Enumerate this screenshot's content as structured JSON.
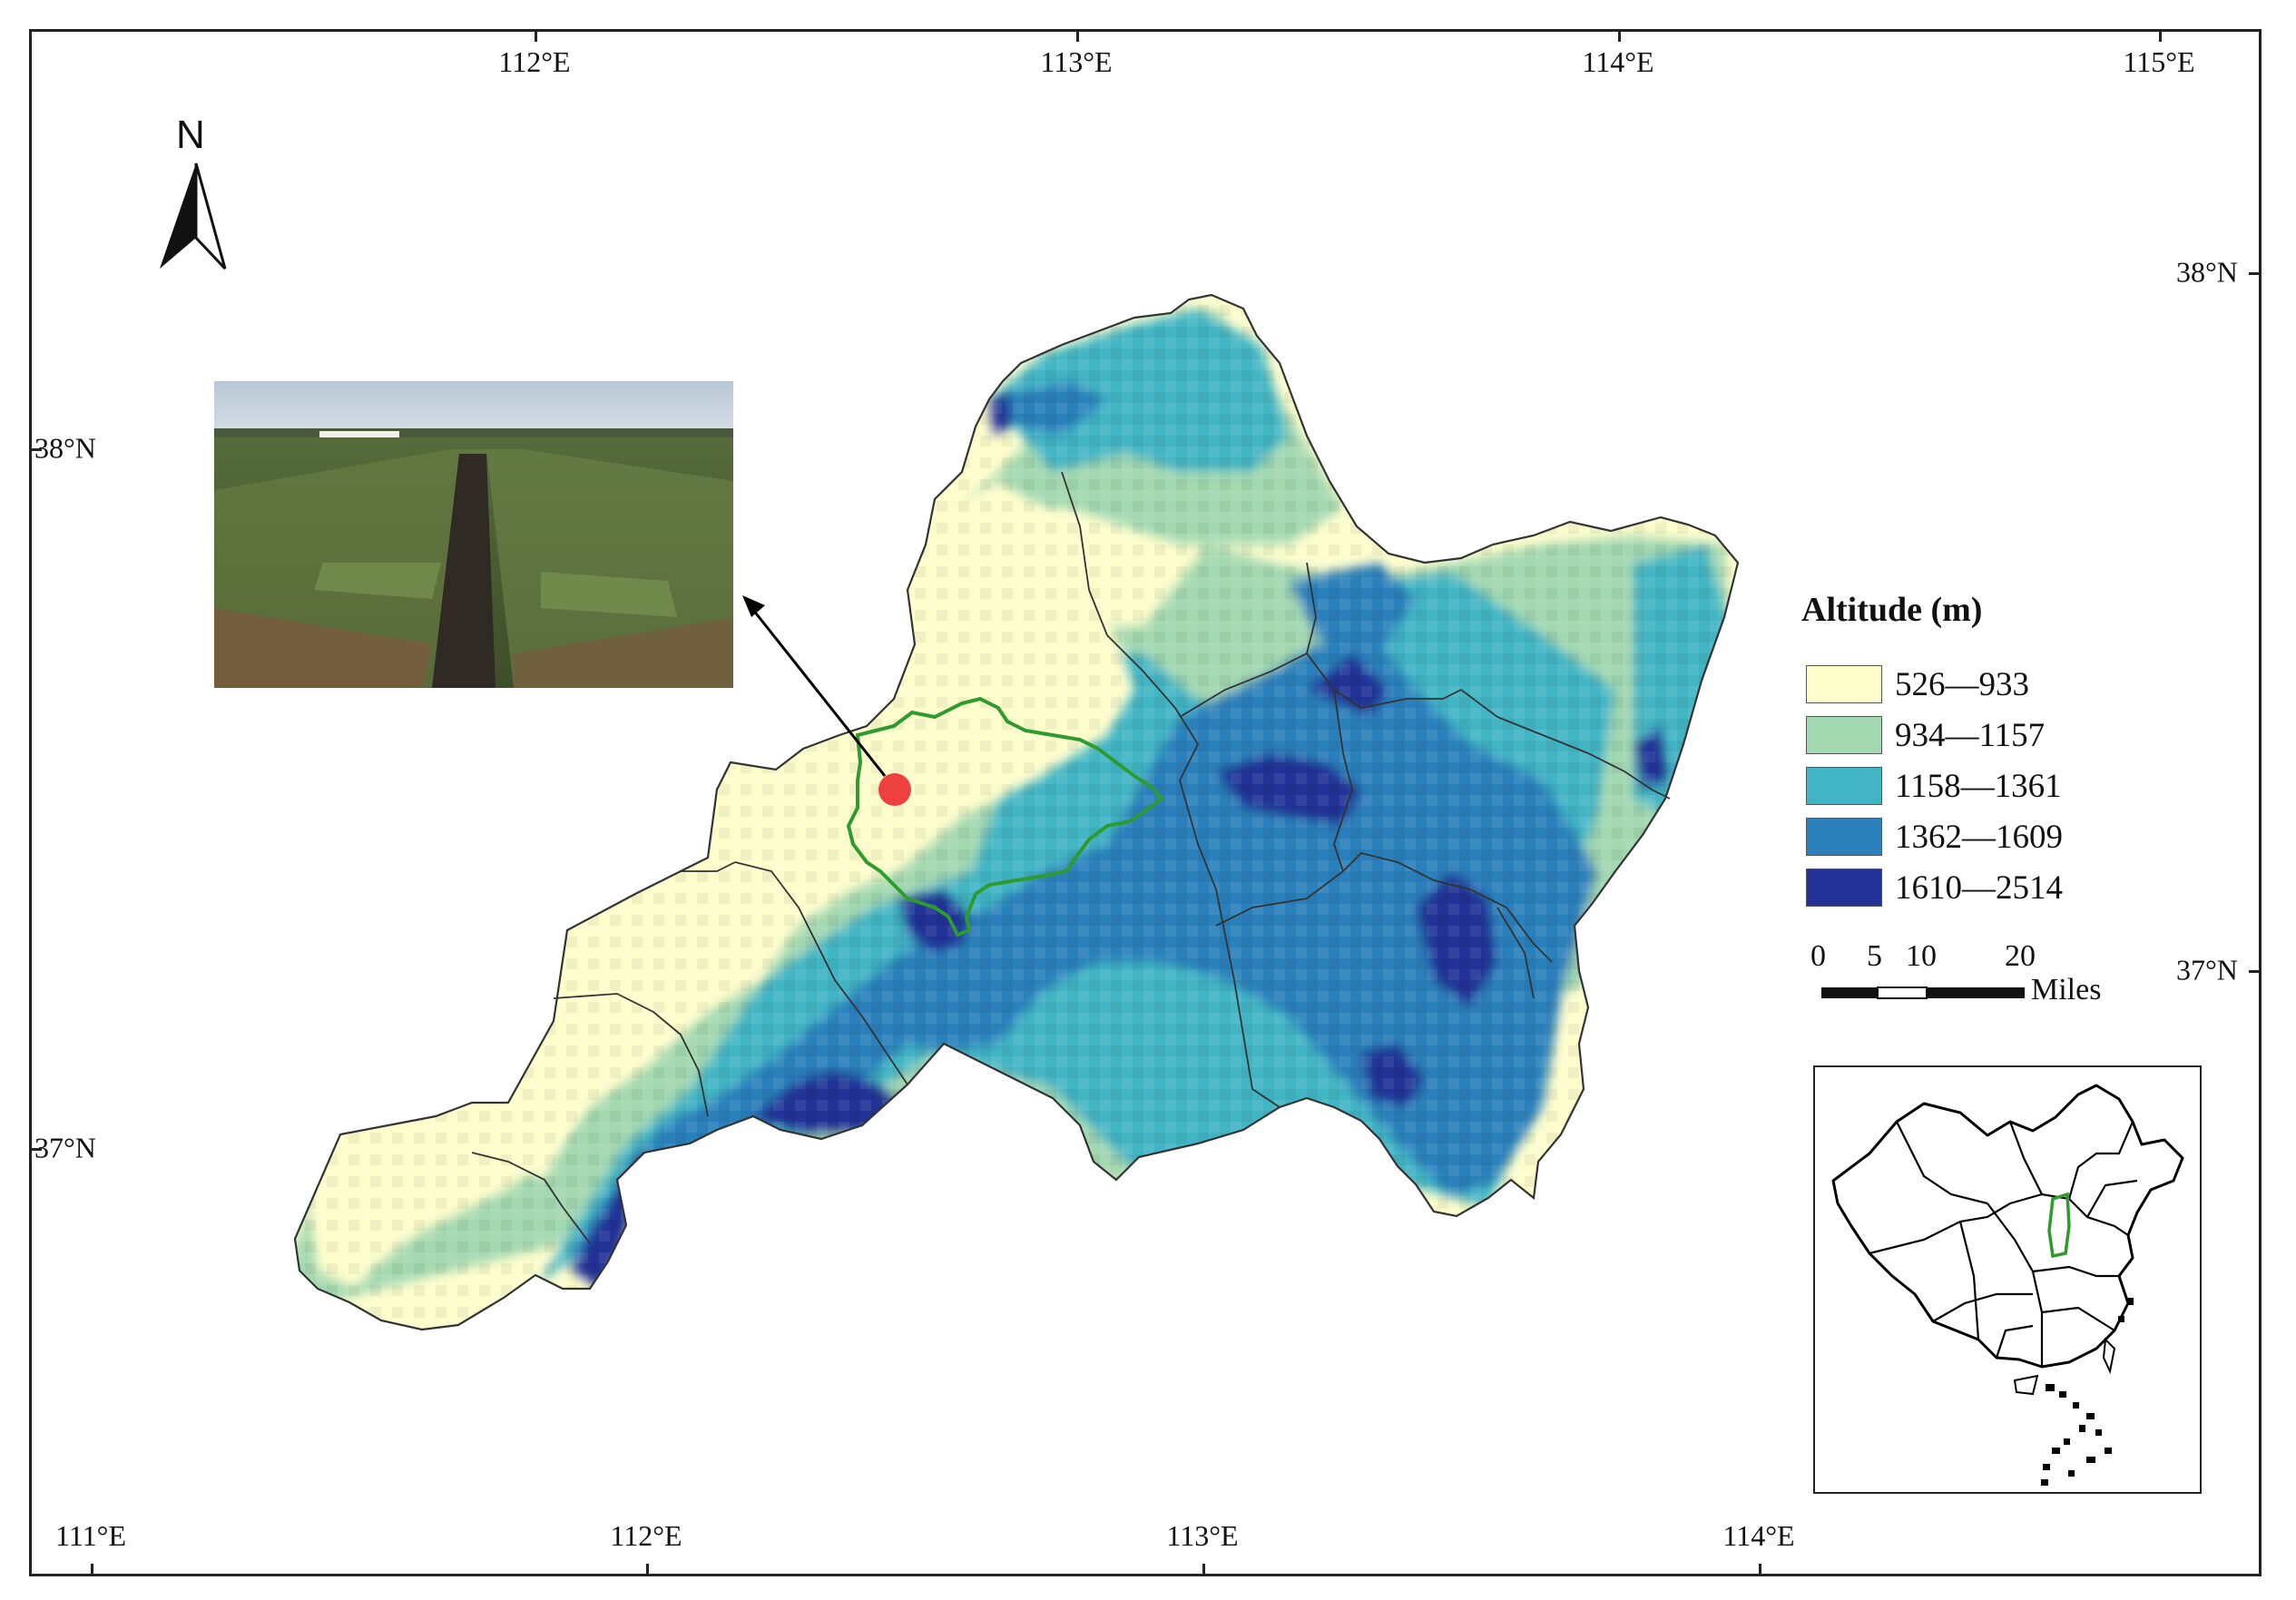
{
  "map": {
    "grid_ticks": {
      "top": [
        "112°E",
        "113°E",
        "114°E",
        "115°E"
      ],
      "bottom": [
        "111°E",
        "112°E",
        "113°E",
        "114°E"
      ],
      "left": [
        "38°N",
        "37°N"
      ],
      "right": [
        "38°N",
        "37°N"
      ]
    },
    "north_arrow": {
      "label": "N",
      "icon": "north-arrow-icon"
    },
    "legend": {
      "title": "Altitude (m)",
      "classes": [
        {
          "label": "526—933",
          "color": "#fefdcc"
        },
        {
          "label": "934—1157",
          "color": "#a3d8b0"
        },
        {
          "label": "1158—1361",
          "color": "#42b5c4"
        },
        {
          "label": "1362—1609",
          "color": "#2c80bb"
        },
        {
          "label": "1610—2514",
          "color": "#233296"
        }
      ]
    },
    "scale_bar": {
      "ticks": [
        "0",
        "5",
        "10",
        "20"
      ],
      "unit": "Miles"
    },
    "study_area_outline_color": "#2e9b2e",
    "sample_point_color": "#ef4040",
    "inset": {
      "highlight_color": "#2e9b2e",
      "icon": "china-locator-map-icon"
    },
    "photo": {
      "icon": "field-site-photo-icon"
    }
  }
}
